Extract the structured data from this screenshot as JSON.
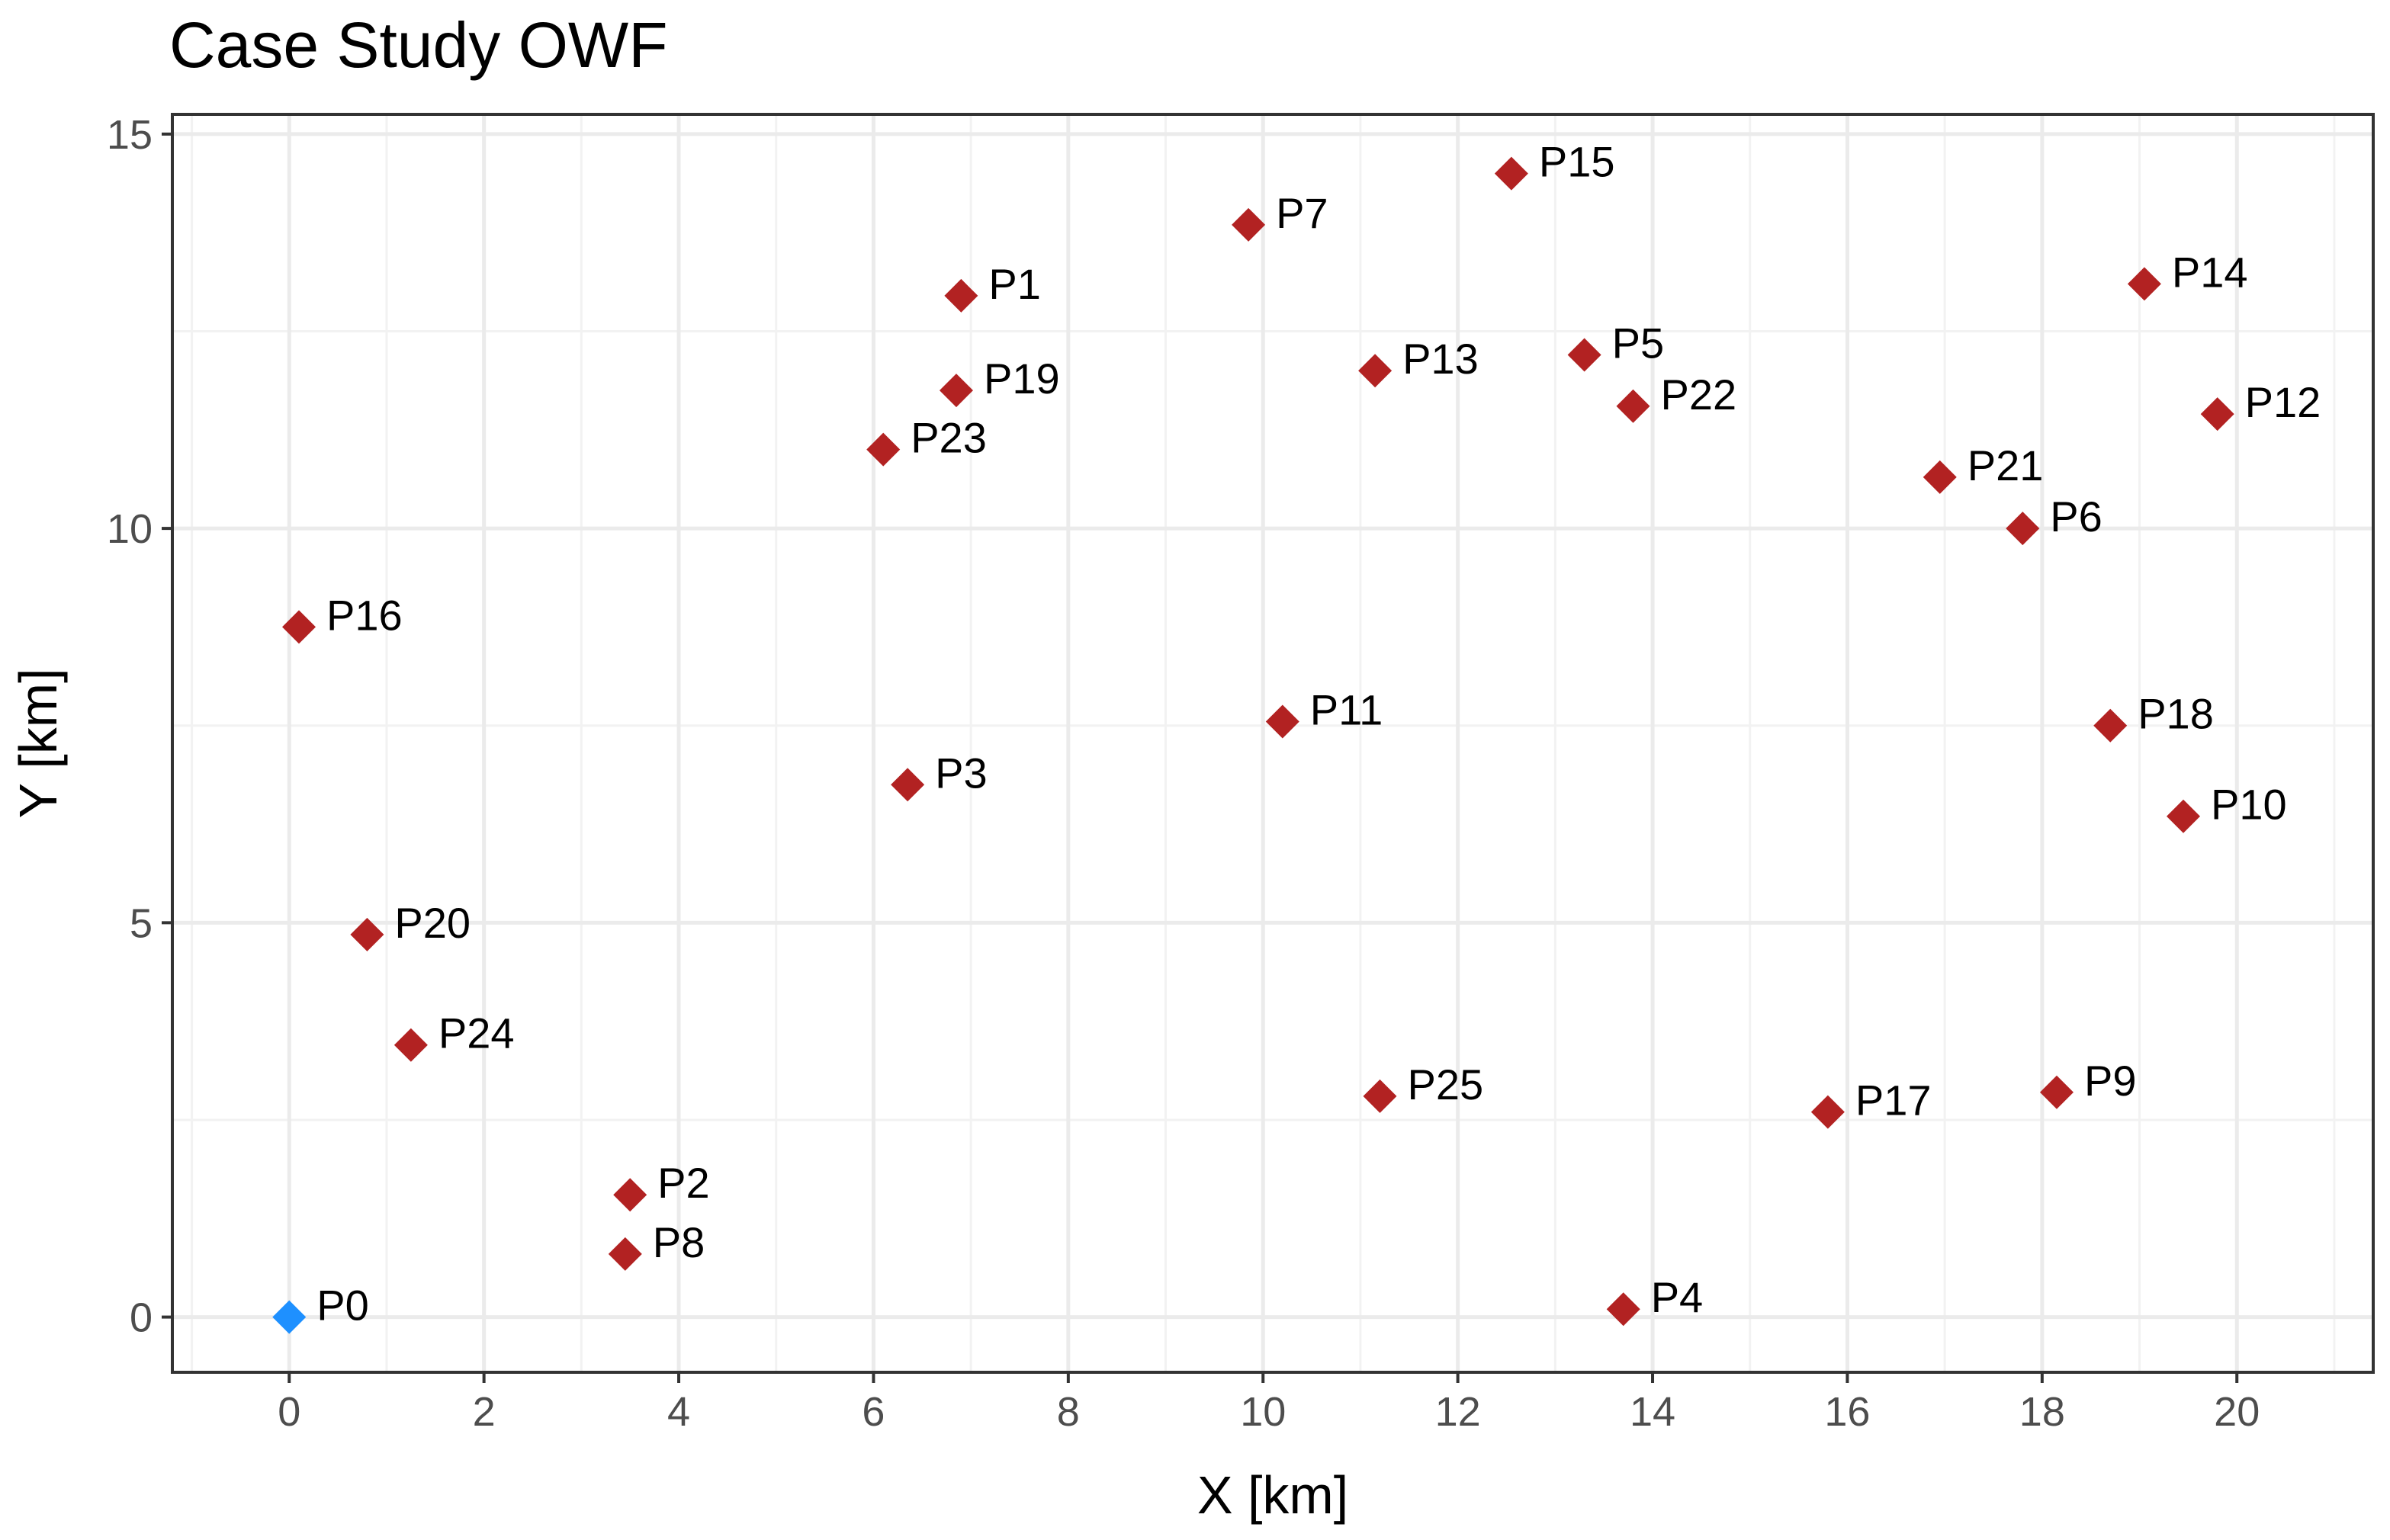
{
  "chart_data": {
    "type": "scatter",
    "title": "Case Study OWF",
    "xlabel": "X [km]",
    "ylabel": "Y [km]",
    "xlim": [
      -1.2,
      21.4
    ],
    "ylim": [
      -0.7,
      15.25
    ],
    "x_ticks": [
      0,
      2,
      4,
      6,
      8,
      10,
      12,
      14,
      16,
      18,
      20
    ],
    "y_ticks": [
      0,
      5,
      10,
      15
    ],
    "grid": true,
    "legend": "none",
    "marker": "diamond",
    "colors": {
      "substation": "#1e90ff",
      "turbine": "#b22222",
      "grid_major": "#ebebeb",
      "grid_minor": "#f2f2f2",
      "panel_border": "#333333",
      "tick_text": "#4d4d4d"
    },
    "points": [
      {
        "label": "P0",
        "x": 0.0,
        "y": 0.0,
        "group": "substation"
      },
      {
        "label": "P1",
        "x": 6.9,
        "y": 12.95,
        "group": "turbine"
      },
      {
        "label": "P2",
        "x": 3.5,
        "y": 1.55,
        "group": "turbine"
      },
      {
        "label": "P3",
        "x": 6.35,
        "y": 6.75,
        "group": "turbine"
      },
      {
        "label": "P4",
        "x": 13.7,
        "y": 0.1,
        "group": "turbine"
      },
      {
        "label": "P5",
        "x": 13.3,
        "y": 12.2,
        "group": "turbine"
      },
      {
        "label": "P6",
        "x": 17.8,
        "y": 10.0,
        "group": "turbine"
      },
      {
        "label": "P7",
        "x": 9.85,
        "y": 13.85,
        "group": "turbine"
      },
      {
        "label": "P8",
        "x": 3.45,
        "y": 0.8,
        "group": "turbine"
      },
      {
        "label": "P9",
        "x": 18.15,
        "y": 2.85,
        "group": "turbine"
      },
      {
        "label": "P10",
        "x": 19.45,
        "y": 6.35,
        "group": "turbine"
      },
      {
        "label": "P11",
        "x": 10.2,
        "y": 7.55,
        "group": "turbine"
      },
      {
        "label": "P12",
        "x": 19.8,
        "y": 11.45,
        "group": "turbine"
      },
      {
        "label": "P13",
        "x": 11.15,
        "y": 12.0,
        "group": "turbine"
      },
      {
        "label": "P14",
        "x": 19.05,
        "y": 13.1,
        "group": "turbine"
      },
      {
        "label": "P15",
        "x": 12.55,
        "y": 14.5,
        "group": "turbine"
      },
      {
        "label": "P16",
        "x": 0.1,
        "y": 8.75,
        "group": "turbine"
      },
      {
        "label": "P17",
        "x": 15.8,
        "y": 2.6,
        "group": "turbine"
      },
      {
        "label": "P18",
        "x": 18.7,
        "y": 7.5,
        "group": "turbine"
      },
      {
        "label": "P19",
        "x": 6.85,
        "y": 11.75,
        "group": "turbine"
      },
      {
        "label": "P20",
        "x": 0.8,
        "y": 4.85,
        "group": "turbine"
      },
      {
        "label": "P21",
        "x": 16.95,
        "y": 10.65,
        "group": "turbine"
      },
      {
        "label": "P22",
        "x": 13.8,
        "y": 11.55,
        "group": "turbine"
      },
      {
        "label": "P23",
        "x": 6.1,
        "y": 11.0,
        "group": "turbine"
      },
      {
        "label": "P24",
        "x": 1.25,
        "y": 3.45,
        "group": "turbine"
      },
      {
        "label": "P25",
        "x": 11.2,
        "y": 2.8,
        "group": "turbine"
      }
    ]
  }
}
